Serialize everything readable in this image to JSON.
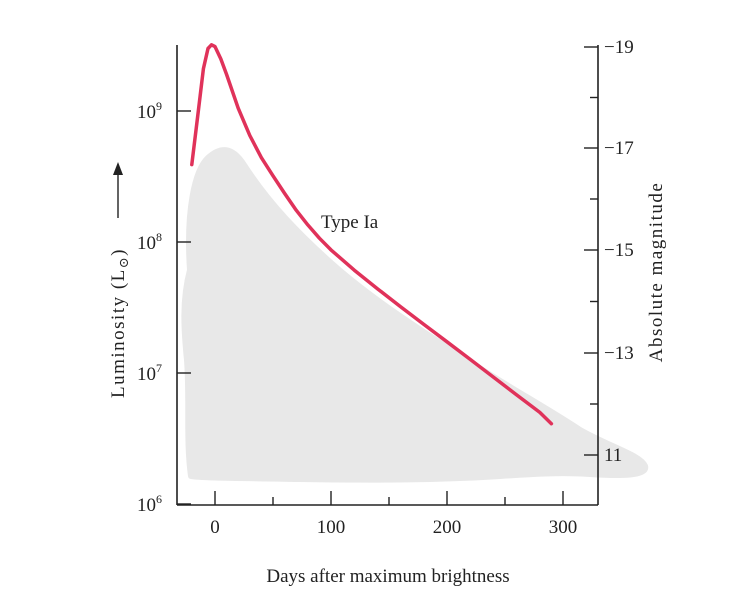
{
  "chart_data": {
    "type": "line",
    "xlabel": "Days after maximum brightness",
    "ylabel": "Luminosity (L",
    "ylabel_symbol": "⊙",
    "ylabel_close": ")",
    "y2label": "Absolute magnitude",
    "xlim": [
      -30,
      330
    ],
    "ylim": [
      1000000,
      3000000000
    ],
    "yscale": "log",
    "x_ticks": [
      0,
      100,
      200,
      300
    ],
    "x_tick_labels": [
      "0",
      "100",
      "200",
      "300"
    ],
    "y_ticks": [
      {
        "value": 1000000,
        "base": "10",
        "exp": "6"
      },
      {
        "value": 10000000,
        "base": "10",
        "exp": "7"
      },
      {
        "value": 100000000,
        "base": "10",
        "exp": "8"
      },
      {
        "value": 1000000000,
        "base": "10",
        "exp": "9"
      }
    ],
    "y2_ticks": [
      "−19",
      "−17",
      "−15",
      "−13",
      "11"
    ],
    "series": [
      {
        "name": "Type Ia",
        "color": "#e0325a",
        "x": [
          -20,
          -15,
          -10,
          -6,
          -3,
          0,
          5,
          10,
          20,
          30,
          40,
          50,
          60,
          70,
          80,
          90,
          100,
          120,
          140,
          160,
          180,
          200,
          220,
          240,
          260,
          280,
          290
        ],
        "y": [
          390000000,
          900000000,
          2100000000,
          3000000000,
          3200000000,
          3100000000,
          2500000000,
          1900000000,
          1050000000,
          650000000,
          440000000,
          320000000,
          235000000,
          175000000,
          135000000,
          107000000,
          87000000,
          61000000,
          44000000,
          32000000,
          23500000,
          17300000,
          12700000,
          9300000,
          6800000,
          5000000,
          4100000
        ]
      }
    ],
    "shaded_region_color": "#e8e8e8",
    "grid": false
  }
}
